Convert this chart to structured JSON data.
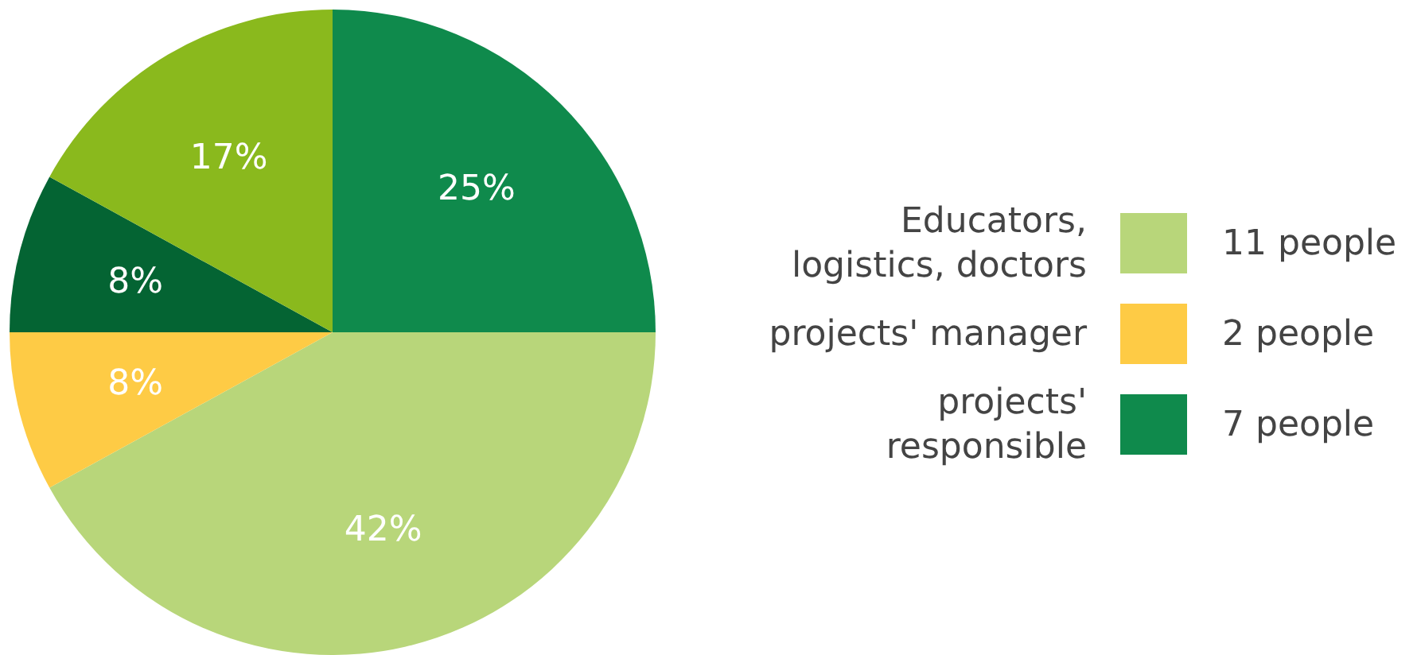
{
  "chart_data": {
    "type": "pie",
    "categories": [
      "Educators,\nlogistics, doctors",
      "projects' manager",
      null,
      null,
      "projects'\nresponsible"
    ],
    "values": [
      42,
      8,
      8,
      17,
      25
    ],
    "colors": [
      "#b8d67a",
      "#fecb45",
      "#046433",
      "#8ab91d",
      "#0f8a4c"
    ],
    "value_labels": [
      "42%",
      "8%",
      "8%",
      "17%",
      "25%"
    ],
    "annotations": [
      "11 people",
      "2 people",
      "7 people"
    ],
    "legend": "right"
  }
}
